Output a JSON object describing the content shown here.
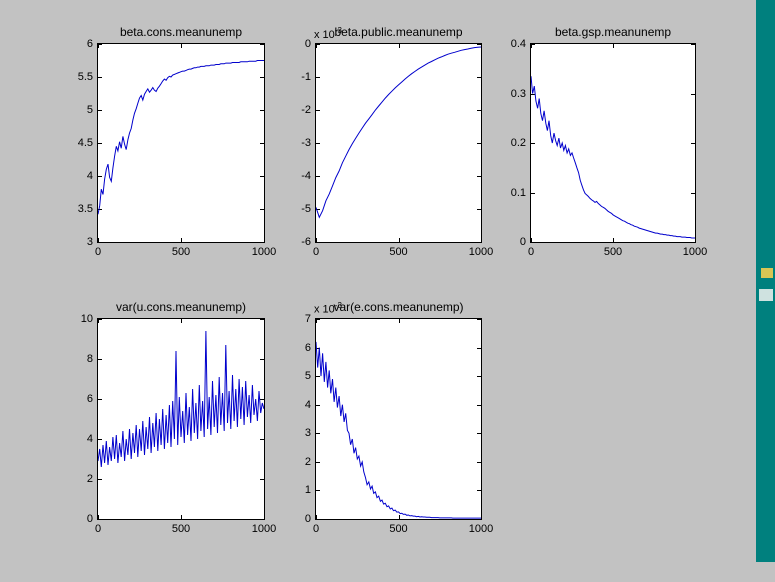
{
  "window": {
    "background": "#c2c2c2",
    "desktop_color": "#00807e",
    "line_color": "#0000cc",
    "axis_color": "#000000",
    "plot_background": "#ffffff"
  },
  "chart_data": [
    {
      "type": "line",
      "title": "beta.cons.meanunemp",
      "xlim": [
        0,
        1000
      ],
      "ylim": [
        3,
        6
      ],
      "xticks": [
        "0",
        "500",
        "1000"
      ],
      "yticks": [
        "6",
        "5.5",
        "5",
        "4.5",
        "4",
        "3.5",
        "3"
      ],
      "exponent": null,
      "grid": false,
      "series": [
        {
          "name": "trace",
          "y": [
            3.42,
            3.55,
            3.8,
            3.72,
            3.95,
            4.1,
            4.18,
            3.98,
            3.92,
            4.12,
            4.3,
            4.45,
            4.38,
            4.52,
            4.42,
            4.6,
            4.48,
            4.4,
            4.55,
            4.65,
            4.72,
            4.85,
            4.95,
            5.02,
            5.1,
            5.18,
            5.22,
            5.15,
            5.24,
            5.28,
            5.32,
            5.27,
            5.3,
            5.34,
            5.3,
            5.28,
            5.33,
            5.36,
            5.4,
            5.44,
            5.47,
            5.45,
            5.49,
            5.51,
            5.5,
            5.53,
            5.54,
            5.55,
            5.56,
            5.57,
            5.58,
            5.59,
            5.59,
            5.6,
            5.61,
            5.62,
            5.62,
            5.63,
            5.64,
            5.64,
            5.65,
            5.65,
            5.66,
            5.66,
            5.66,
            5.67,
            5.67,
            5.67,
            5.68,
            5.68,
            5.68,
            5.69,
            5.69,
            5.69,
            5.7,
            5.7,
            5.7,
            5.71,
            5.71,
            5.71,
            5.71,
            5.72,
            5.72,
            5.72,
            5.72,
            5.72,
            5.73,
            5.73,
            5.73,
            5.73,
            5.73,
            5.74,
            5.74,
            5.74,
            5.74,
            5.74,
            5.75,
            5.75,
            5.75,
            5.75,
            5.75
          ]
        }
      ]
    },
    {
      "type": "line",
      "title": "beta.public.meanunemp",
      "xlim": [
        0,
        1000
      ],
      "ylim": [
        -6,
        0
      ],
      "xticks": [
        "0",
        "500",
        "1000"
      ],
      "yticks": [
        "0",
        "-1",
        "-2",
        "-3",
        "-4",
        "-5",
        "-6"
      ],
      "exponent": {
        "base": "x 10",
        "power": "-3"
      },
      "grid": false,
      "series": [
        {
          "name": "trace",
          "y": [
            -4.95,
            -5.25,
            -5.05,
            -4.75,
            -4.55,
            -4.3,
            -4.05,
            -3.85,
            -3.6,
            -3.4,
            -3.2,
            -3.02,
            -2.86,
            -2.7,
            -2.55,
            -2.4,
            -2.27,
            -2.14,
            -2.0,
            -1.88,
            -1.76,
            -1.64,
            -1.53,
            -1.43,
            -1.33,
            -1.24,
            -1.15,
            -1.06,
            -0.98,
            -0.9,
            -0.83,
            -0.76,
            -0.7,
            -0.64,
            -0.58,
            -0.53,
            -0.48,
            -0.43,
            -0.39,
            -0.35,
            -0.31,
            -0.28,
            -0.25,
            -0.22,
            -0.19,
            -0.17,
            -0.15,
            -0.13,
            -0.11,
            -0.1,
            -0.09
          ]
        }
      ]
    },
    {
      "type": "line",
      "title": "beta.gsp.meanunemp",
      "xlim": [
        0,
        1000
      ],
      "ylim": [
        0,
        0.4
      ],
      "xticks": [
        "0",
        "500",
        "1000"
      ],
      "yticks": [
        "0.4",
        "0.3",
        "0.2",
        "0.1",
        "0"
      ],
      "exponent": null,
      "grid": false,
      "series": [
        {
          "name": "trace",
          "y": [
            0.335,
            0.3,
            0.315,
            0.285,
            0.27,
            0.29,
            0.26,
            0.245,
            0.265,
            0.24,
            0.225,
            0.245,
            0.215,
            0.2,
            0.22,
            0.205,
            0.195,
            0.21,
            0.19,
            0.2,
            0.185,
            0.195,
            0.18,
            0.188,
            0.175,
            0.18,
            0.17,
            0.16,
            0.15,
            0.14,
            0.125,
            0.115,
            0.105,
            0.098,
            0.095,
            0.092,
            0.088,
            0.085,
            0.083,
            0.08,
            0.082,
            0.078,
            0.075,
            0.072,
            0.07,
            0.068,
            0.065,
            0.062,
            0.06,
            0.058,
            0.055,
            0.053,
            0.051,
            0.049,
            0.047,
            0.045,
            0.043,
            0.042,
            0.04,
            0.038,
            0.037,
            0.035,
            0.034,
            0.032,
            0.031,
            0.03,
            0.028,
            0.027,
            0.026,
            0.025,
            0.024,
            0.023,
            0.022,
            0.021,
            0.02,
            0.019,
            0.018,
            0.018,
            0.017,
            0.016,
            0.016,
            0.015,
            0.015,
            0.014,
            0.014,
            0.013,
            0.013,
            0.012,
            0.012,
            0.011,
            0.011,
            0.011,
            0.01,
            0.01,
            0.01,
            0.009,
            0.009,
            0.009,
            0.008,
            0.008,
            0.008
          ]
        }
      ]
    },
    {
      "type": "line",
      "title": "var(u.cons.meanunemp)",
      "xlim": [
        0,
        1000
      ],
      "ylim": [
        0,
        10
      ],
      "xticks": [
        "0",
        "500",
        "1000"
      ],
      "yticks": [
        "10",
        "8",
        "6",
        "4",
        "2",
        "0"
      ],
      "exponent": null,
      "grid": false,
      "series": [
        {
          "name": "trace",
          "y": [
            2.9,
            3.5,
            2.6,
            3.7,
            2.8,
            3.9,
            2.7,
            3.6,
            2.9,
            4.1,
            3.0,
            4.2,
            2.8,
            3.8,
            3.1,
            4.4,
            2.9,
            4.0,
            3.2,
            4.5,
            3.0,
            4.3,
            3.3,
            4.7,
            3.1,
            4.5,
            3.4,
            4.9,
            3.2,
            4.6,
            3.5,
            5.1,
            3.3,
            4.8,
            3.6,
            5.3,
            3.4,
            5.0,
            3.7,
            5.5,
            3.5,
            5.2,
            3.8,
            5.7,
            3.6,
            5.9,
            4.0,
            8.4,
            3.7,
            6.1,
            4.1,
            5.4,
            3.8,
            6.3,
            4.2,
            5.6,
            3.9,
            6.5,
            4.3,
            5.8,
            4.0,
            6.7,
            4.4,
            5.9,
            4.1,
            9.4,
            4.5,
            6.1,
            4.2,
            6.9,
            4.6,
            6.2,
            4.3,
            7.1,
            4.7,
            6.3,
            4.4,
            8.7,
            4.8,
            6.4,
            4.5,
            7.2,
            4.9,
            6.5,
            4.6,
            7.0,
            5.0,
            6.6,
            4.7,
            6.9,
            5.1,
            6.2,
            4.8,
            6.7,
            5.2,
            6.0,
            4.9,
            6.4,
            5.3,
            5.8,
            5.5
          ]
        }
      ]
    },
    {
      "type": "line",
      "title": "var(e.cons.meanunemp)",
      "xlim": [
        0,
        1000
      ],
      "ylim": [
        0,
        7
      ],
      "xticks": [
        "0",
        "500",
        "1000"
      ],
      "yticks": [
        "7",
        "6",
        "5",
        "4",
        "3",
        "2",
        "1",
        "0"
      ],
      "exponent": {
        "base": "x 10",
        "power": "-3"
      },
      "grid": false,
      "series": [
        {
          "name": "trace",
          "y": [
            6.2,
            5.3,
            6.0,
            5.0,
            5.8,
            4.8,
            5.5,
            4.6,
            5.2,
            4.4,
            4.9,
            4.1,
            4.6,
            3.9,
            4.3,
            3.6,
            4.0,
            3.4,
            3.7,
            3.1,
            3.0,
            2.6,
            2.8,
            2.3,
            2.5,
            2.1,
            2.2,
            1.85,
            2.0,
            1.65,
            1.45,
            1.2,
            1.3,
            1.05,
            1.15,
            0.9,
            0.95,
            0.75,
            0.8,
            0.62,
            0.66,
            0.52,
            0.55,
            0.43,
            0.46,
            0.35,
            0.38,
            0.29,
            0.31,
            0.24,
            0.25,
            0.19,
            0.2,
            0.16,
            0.17,
            0.13,
            0.14,
            0.11,
            0.12,
            0.1,
            0.1,
            0.08,
            0.09,
            0.07,
            0.08,
            0.07,
            0.07,
            0.06,
            0.06,
            0.06,
            0.05,
            0.05,
            0.05,
            0.05,
            0.05,
            0.04,
            0.04,
            0.04,
            0.04,
            0.04,
            0.04,
            0.04,
            0.04,
            0.03,
            0.03,
            0.03,
            0.03,
            0.03,
            0.03,
            0.03,
            0.03,
            0.03,
            0.03,
            0.03,
            0.03,
            0.03,
            0.03,
            0.03,
            0.03,
            0.03,
            0.03
          ]
        }
      ]
    }
  ],
  "desktop": {
    "icon_colors": [
      "#d9c654",
      "#cfe2e0"
    ]
  }
}
